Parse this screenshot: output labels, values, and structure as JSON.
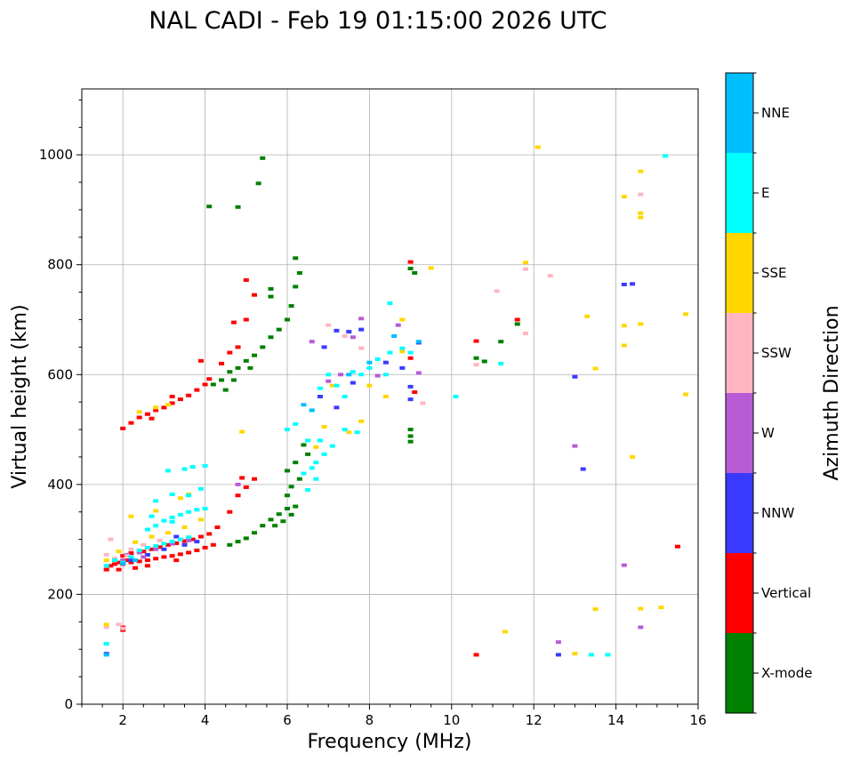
{
  "chart_data": {
    "type": "scatter",
    "title": "NAL CADI - Feb 19 01:15:00 2026 UTC",
    "xlabel": "Frequency (MHz)",
    "ylabel": "Virtual height (km)",
    "xlim": [
      1,
      16
    ],
    "ylim": [
      0,
      1120
    ],
    "xticks": [
      2,
      4,
      6,
      8,
      10,
      12,
      14,
      16
    ],
    "yticks": [
      0,
      200,
      400,
      600,
      800,
      1000
    ],
    "grid": true,
    "colorbar": {
      "title": "Azimuth Direction",
      "categories": [
        {
          "name": "X-mode",
          "color": "#008000"
        },
        {
          "name": "Vertical",
          "color": "#ff0000"
        },
        {
          "name": "NNW",
          "color": "#3a3aff"
        },
        {
          "name": "W",
          "color": "#b85cd6"
        },
        {
          "name": "SSW",
          "color": "#ffb6c1"
        },
        {
          "name": "SSE",
          "color": "#ffd700"
        },
        {
          "name": "E",
          "color": "#00ffff"
        },
        {
          "name": "NNE",
          "color": "#00bfff"
        }
      ]
    },
    "series": [
      {
        "name": "X-mode",
        "points": [
          [
            4.6,
            290
          ],
          [
            4.8,
            296
          ],
          [
            5.0,
            302
          ],
          [
            5.2,
            312
          ],
          [
            5.4,
            325
          ],
          [
            5.6,
            336
          ],
          [
            5.8,
            346
          ],
          [
            6.0,
            356
          ],
          [
            6.2,
            360
          ],
          [
            5.7,
            325
          ],
          [
            5.9,
            333
          ],
          [
            6.1,
            345
          ],
          [
            6.0,
            380
          ],
          [
            6.1,
            396
          ],
          [
            6.3,
            410
          ],
          [
            6.0,
            425
          ],
          [
            6.2,
            440
          ],
          [
            6.4,
            472
          ],
          [
            6.5,
            455
          ],
          [
            4.2,
            582
          ],
          [
            4.4,
            590
          ],
          [
            4.6,
            605
          ],
          [
            4.8,
            612
          ],
          [
            5.0,
            625
          ],
          [
            5.2,
            635
          ],
          [
            5.4,
            650
          ],
          [
            5.6,
            668
          ],
          [
            5.8,
            682
          ],
          [
            6.0,
            700
          ],
          [
            6.1,
            725
          ],
          [
            6.2,
            760
          ],
          [
            6.3,
            785
          ],
          [
            6.2,
            812
          ],
          [
            5.6,
            756
          ],
          [
            5.6,
            742
          ],
          [
            4.7,
            590
          ],
          [
            4.5,
            572
          ],
          [
            5.1,
            612
          ],
          [
            4.1,
            906
          ],
          [
            4.8,
            905
          ],
          [
            5.3,
            948
          ],
          [
            5.4,
            994
          ],
          [
            9.0,
            478
          ],
          [
            9.0,
            488
          ],
          [
            9.0,
            500
          ],
          [
            9.1,
            785
          ],
          [
            9.0,
            793
          ],
          [
            10.6,
            630
          ],
          [
            10.8,
            624
          ],
          [
            11.2,
            660
          ],
          [
            11.6,
            692
          ]
        ]
      },
      {
        "name": "Vertical",
        "points": [
          [
            1.6,
            245
          ],
          [
            1.7,
            252
          ],
          [
            1.8,
            255
          ],
          [
            1.9,
            258
          ],
          [
            2.0,
            255
          ],
          [
            2.1,
            262
          ],
          [
            2.2,
            258
          ],
          [
            2.4,
            260
          ],
          [
            2.6,
            262
          ],
          [
            2.8,
            265
          ],
          [
            3.0,
            268
          ],
          [
            3.2,
            270
          ],
          [
            3.4,
            273
          ],
          [
            3.6,
            276
          ],
          [
            3.8,
            280
          ],
          [
            4.0,
            285
          ],
          [
            4.2,
            290
          ],
          [
            2.0,
            270
          ],
          [
            2.2,
            275
          ],
          [
            2.5,
            278
          ],
          [
            2.7,
            282
          ],
          [
            2.9,
            286
          ],
          [
            3.1,
            290
          ],
          [
            3.3,
            293
          ],
          [
            3.5,
            297
          ],
          [
            3.7,
            300
          ],
          [
            3.9,
            305
          ],
          [
            4.1,
            310
          ],
          [
            1.9,
            245
          ],
          [
            2.3,
            248
          ],
          [
            2.6,
            252
          ],
          [
            3.3,
            262
          ],
          [
            2.0,
            502
          ],
          [
            2.2,
            512
          ],
          [
            2.4,
            522
          ],
          [
            2.6,
            528
          ],
          [
            2.8,
            535
          ],
          [
            3.0,
            540
          ],
          [
            3.2,
            548
          ],
          [
            3.4,
            555
          ],
          [
            3.6,
            562
          ],
          [
            3.8,
            572
          ],
          [
            4.0,
            582
          ],
          [
            4.1,
            592
          ],
          [
            3.9,
            625
          ],
          [
            3.2,
            560
          ],
          [
            2.7,
            520
          ],
          [
            4.4,
            620
          ],
          [
            4.6,
            640
          ],
          [
            4.8,
            650
          ],
          [
            5.0,
            700
          ],
          [
            5.2,
            745
          ],
          [
            5.0,
            772
          ],
          [
            4.7,
            695
          ],
          [
            4.6,
            350
          ],
          [
            4.8,
            380
          ],
          [
            5.0,
            395
          ],
          [
            5.2,
            410
          ],
          [
            4.9,
            412
          ],
          [
            4.3,
            322
          ],
          [
            2.0,
            135
          ],
          [
            2.0,
            140
          ],
          [
            9.0,
            630
          ],
          [
            9.1,
            568
          ],
          [
            9.0,
            805
          ],
          [
            10.6,
            90
          ],
          [
            10.6,
            661
          ],
          [
            11.6,
            700
          ],
          [
            15.5,
            287
          ]
        ]
      },
      {
        "name": "NNW",
        "points": [
          [
            2.0,
            258
          ],
          [
            2.2,
            262
          ],
          [
            2.6,
            272
          ],
          [
            3.0,
            282
          ],
          [
            3.5,
            290
          ],
          [
            3.8,
            296
          ],
          [
            3.3,
            305
          ],
          [
            6.9,
            650
          ],
          [
            7.2,
            680
          ],
          [
            7.5,
            678
          ],
          [
            7.8,
            682
          ],
          [
            8.4,
            622
          ],
          [
            8.8,
            612
          ],
          [
            9.0,
            578
          ],
          [
            9.2,
            658
          ],
          [
            9.0,
            555
          ],
          [
            6.8,
            560
          ],
          [
            7.2,
            540
          ],
          [
            7.6,
            585
          ],
          [
            13.2,
            428
          ],
          [
            12.6,
            90
          ],
          [
            13.0,
            596
          ],
          [
            14.2,
            764
          ],
          [
            14.4,
            765
          ],
          [
            1.6,
            92
          ]
        ]
      },
      {
        "name": "W",
        "points": [
          [
            2.1,
            272
          ],
          [
            2.4,
            276
          ],
          [
            2.8,
            282
          ],
          [
            3.2,
            292
          ],
          [
            3.6,
            298
          ],
          [
            2.0,
            262
          ],
          [
            2.5,
            268
          ],
          [
            6.6,
            660
          ],
          [
            7.0,
            588
          ],
          [
            7.3,
            600
          ],
          [
            7.6,
            668
          ],
          [
            7.8,
            702
          ],
          [
            8.7,
            690
          ],
          [
            9.2,
            603
          ],
          [
            8.2,
            598
          ],
          [
            13.0,
            470
          ],
          [
            12.6,
            113
          ],
          [
            14.2,
            253
          ],
          [
            14.6,
            140
          ],
          [
            4.8,
            400
          ]
        ]
      },
      {
        "name": "SSW",
        "points": [
          [
            1.6,
            272
          ],
          [
            1.8,
            265
          ],
          [
            2.1,
            270
          ],
          [
            2.2,
            282
          ],
          [
            2.5,
            290
          ],
          [
            2.9,
            298
          ],
          [
            1.7,
            300
          ],
          [
            7.0,
            690
          ],
          [
            7.4,
            670
          ],
          [
            7.8,
            648
          ],
          [
            9.3,
            548
          ],
          [
            10.6,
            618
          ],
          [
            11.1,
            752
          ],
          [
            11.8,
            675
          ],
          [
            11.8,
            792
          ],
          [
            12.4,
            780
          ],
          [
            14.6,
            928
          ],
          [
            1.6,
            140
          ],
          [
            2.0,
            138
          ],
          [
            1.9,
            145
          ]
        ]
      },
      {
        "name": "SSE",
        "points": [
          [
            1.6,
            262
          ],
          [
            1.9,
            278
          ],
          [
            2.3,
            295
          ],
          [
            2.7,
            305
          ],
          [
            3.1,
            312
          ],
          [
            3.5,
            322
          ],
          [
            3.9,
            336
          ],
          [
            2.2,
            342
          ],
          [
            2.8,
            352
          ],
          [
            3.4,
            375
          ],
          [
            3.6,
            382
          ],
          [
            2.4,
            532
          ],
          [
            2.8,
            540
          ],
          [
            3.1,
            545
          ],
          [
            4.9,
            496
          ],
          [
            6.7,
            468
          ],
          [
            6.9,
            505
          ],
          [
            7.1,
            580
          ],
          [
            7.5,
            495
          ],
          [
            7.8,
            515
          ],
          [
            8.0,
            580
          ],
          [
            8.4,
            560
          ],
          [
            8.8,
            642
          ],
          [
            8.8,
            700
          ],
          [
            9.5,
            794
          ],
          [
            11.3,
            132
          ],
          [
            11.8,
            804
          ],
          [
            12.1,
            1014
          ],
          [
            13.0,
            92
          ],
          [
            13.3,
            706
          ],
          [
            13.5,
            611
          ],
          [
            13.5,
            173
          ],
          [
            14.2,
            689
          ],
          [
            14.2,
            653
          ],
          [
            14.2,
            924
          ],
          [
            14.4,
            450
          ],
          [
            14.6,
            970
          ],
          [
            14.6,
            692
          ],
          [
            14.6,
            174
          ],
          [
            14.6,
            886
          ],
          [
            14.6,
            894
          ],
          [
            15.1,
            176
          ],
          [
            15.7,
            710
          ],
          [
            15.7,
            564
          ],
          [
            1.6,
            145
          ]
        ]
      },
      {
        "name": "E",
        "points": [
          [
            1.6,
            252
          ],
          [
            1.8,
            262
          ],
          [
            2.0,
            258
          ],
          [
            2.2,
            268
          ],
          [
            2.4,
            280
          ],
          [
            2.6,
            285
          ],
          [
            2.8,
            288
          ],
          [
            3.0,
            292
          ],
          [
            3.2,
            296
          ],
          [
            3.4,
            300
          ],
          [
            3.6,
            304
          ],
          [
            2.6,
            318
          ],
          [
            2.8,
            325
          ],
          [
            3.0,
            334
          ],
          [
            3.2,
            340
          ],
          [
            3.4,
            345
          ],
          [
            3.6,
            350
          ],
          [
            3.8,
            354
          ],
          [
            4.0,
            356
          ],
          [
            2.7,
            342
          ],
          [
            3.2,
            332
          ],
          [
            2.8,
            370
          ],
          [
            3.2,
            382
          ],
          [
            3.6,
            380
          ],
          [
            3.9,
            392
          ],
          [
            3.1,
            425
          ],
          [
            3.5,
            428
          ],
          [
            3.7,
            432
          ],
          [
            4.0,
            434
          ],
          [
            6.0,
            500
          ],
          [
            6.2,
            510
          ],
          [
            6.4,
            420
          ],
          [
            6.6,
            430
          ],
          [
            6.7,
            440
          ],
          [
            6.8,
            480
          ],
          [
            6.5,
            480
          ],
          [
            6.6,
            535
          ],
          [
            6.8,
            575
          ],
          [
            7.0,
            600
          ],
          [
            7.2,
            580
          ],
          [
            7.4,
            560
          ],
          [
            7.6,
            605
          ],
          [
            7.8,
            600
          ],
          [
            8.0,
            612
          ],
          [
            8.2,
            628
          ],
          [
            8.4,
            600
          ],
          [
            8.5,
            640
          ],
          [
            8.8,
            648
          ],
          [
            9.0,
            640
          ],
          [
            8.5,
            730
          ],
          [
            6.5,
            390
          ],
          [
            6.7,
            410
          ],
          [
            6.9,
            455
          ],
          [
            7.1,
            470
          ],
          [
            7.4,
            500
          ],
          [
            7.7,
            495
          ],
          [
            10.1,
            560
          ],
          [
            11.2,
            620
          ],
          [
            13.4,
            90
          ],
          [
            13.8,
            90
          ],
          [
            15.2,
            998
          ],
          [
            1.6,
            110
          ]
        ]
      },
      {
        "name": "NNE",
        "points": [
          [
            1.6,
            90
          ],
          [
            2.0,
            256
          ],
          [
            2.3,
            262
          ],
          [
            7.5,
            600
          ],
          [
            8.0,
            622
          ],
          [
            8.6,
            670
          ],
          [
            9.2,
            660
          ],
          [
            6.4,
            545
          ],
          [
            6.6,
            535
          ]
        ]
      }
    ]
  }
}
